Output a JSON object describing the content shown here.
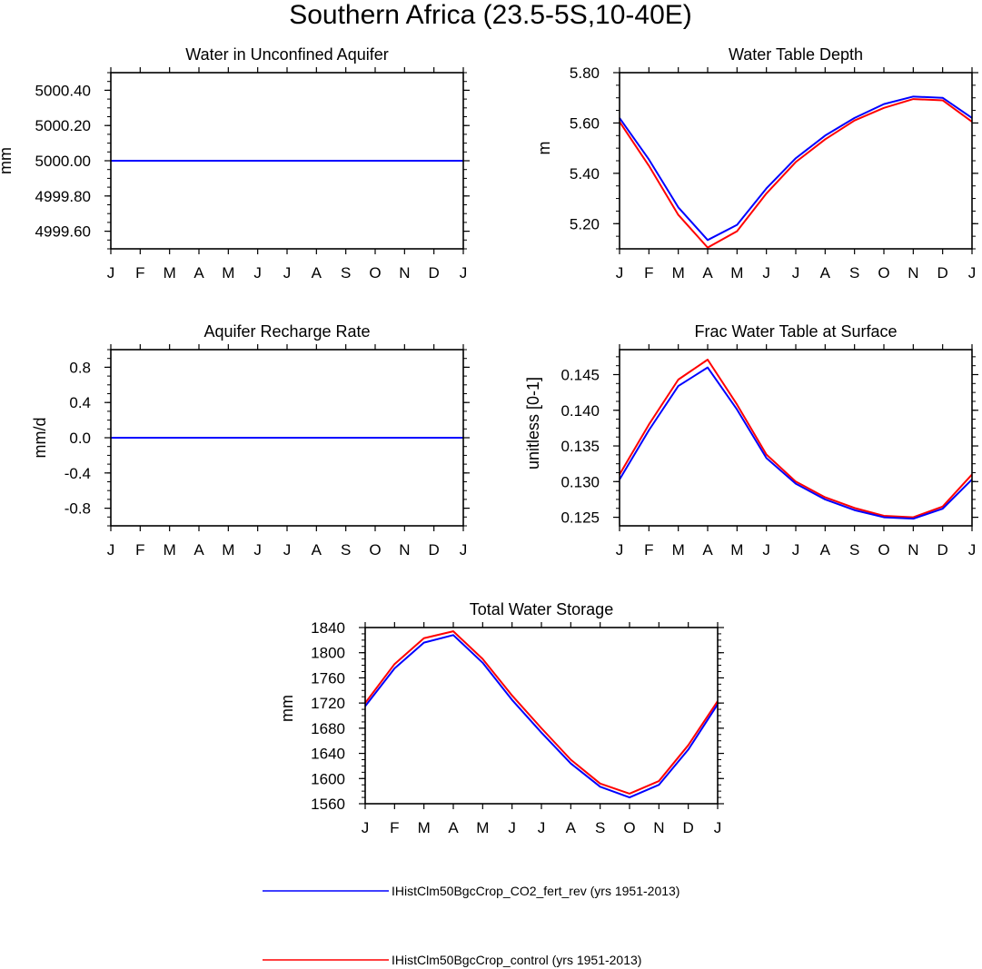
{
  "page_title": "Southern Africa (23.5-5S,10-40E)",
  "colors": {
    "blue": "#0000ff",
    "red": "#ff0000",
    "axis": "#000000"
  },
  "legend": {
    "items": [
      {
        "label": "IHistClm50BgcCrop_CO2_fert_rev (yrs 1951-2013)",
        "color": "#0000ff"
      },
      {
        "label": "IHistClm50BgcCrop_control (yrs 1951-2013)",
        "color": "#ff0000"
      }
    ]
  },
  "chart_data": [
    {
      "type": "line",
      "title": "Water in Unconfined Aquifer",
      "xlabel": "",
      "ylabel": "mm",
      "categories": [
        "J",
        "F",
        "M",
        "A",
        "M",
        "J",
        "J",
        "A",
        "S",
        "O",
        "N",
        "D",
        "J"
      ],
      "ylim": [
        4999.5,
        5000.5
      ],
      "yticks": [
        "5000.40",
        "5000.20",
        "5000.00",
        "4999.80",
        "4999.60"
      ],
      "grid": false,
      "series": [
        {
          "name": "IHistClm50BgcCrop_control (yrs 1951-2013)",
          "color": "#ff0000",
          "values": [
            5000,
            5000,
            5000,
            5000,
            5000,
            5000,
            5000,
            5000,
            5000,
            5000,
            5000,
            5000,
            5000
          ]
        },
        {
          "name": "IHistClm50BgcCrop_CO2_fert_rev (yrs 1951-2013)",
          "color": "#0000ff",
          "values": [
            5000,
            5000,
            5000,
            5000,
            5000,
            5000,
            5000,
            5000,
            5000,
            5000,
            5000,
            5000,
            5000
          ]
        }
      ]
    },
    {
      "type": "line",
      "title": "Water Table Depth",
      "xlabel": "",
      "ylabel": "m",
      "categories": [
        "J",
        "F",
        "M",
        "A",
        "M",
        "J",
        "J",
        "A",
        "S",
        "O",
        "N",
        "D",
        "J"
      ],
      "ylim": [
        5.1,
        5.8
      ],
      "yticks": [
        "5.80",
        "5.60",
        "5.40",
        "5.20"
      ],
      "grid": false,
      "series": [
        {
          "name": "IHistClm50BgcCrop_control (yrs 1951-2013)",
          "color": "#ff0000",
          "values": [
            5.605,
            5.43,
            5.235,
            5.105,
            5.17,
            5.32,
            5.445,
            5.535,
            5.61,
            5.66,
            5.695,
            5.69,
            5.605
          ]
        },
        {
          "name": "IHistClm50BgcCrop_CO2_fert_rev (yrs 1951-2013)",
          "color": "#0000ff",
          "values": [
            5.62,
            5.455,
            5.265,
            5.135,
            5.195,
            5.34,
            5.46,
            5.55,
            5.62,
            5.675,
            5.705,
            5.7,
            5.62
          ]
        }
      ]
    },
    {
      "type": "line",
      "title": "Aquifer Recharge Rate",
      "xlabel": "",
      "ylabel": "mm/d",
      "categories": [
        "J",
        "F",
        "M",
        "A",
        "M",
        "J",
        "J",
        "A",
        "S",
        "O",
        "N",
        "D",
        "J"
      ],
      "ylim": [
        -1.0,
        1.0
      ],
      "yticks": [
        "0.8",
        "0.4",
        "0.0",
        "-0.4",
        "-0.8"
      ],
      "grid": false,
      "series": [
        {
          "name": "IHistClm50BgcCrop_control (yrs 1951-2013)",
          "color": "#ff0000",
          "values": [
            0,
            0,
            0,
            0,
            0,
            0,
            0,
            0,
            0,
            0,
            0,
            0,
            0
          ]
        },
        {
          "name": "IHistClm50BgcCrop_CO2_fert_rev (yrs 1951-2013)",
          "color": "#0000ff",
          "values": [
            0,
            0,
            0,
            0,
            0,
            0,
            0,
            0,
            0,
            0,
            0,
            0,
            0
          ]
        }
      ]
    },
    {
      "type": "line",
      "title": "Frac Water Table at Surface",
      "xlabel": "",
      "ylabel": "unitless [0-1]",
      "categories": [
        "J",
        "F",
        "M",
        "A",
        "M",
        "J",
        "J",
        "A",
        "S",
        "O",
        "N",
        "D",
        "J"
      ],
      "ylim": [
        0.1238,
        0.1485
      ],
      "yticks": [
        "0.145",
        "0.140",
        "0.135",
        "0.130",
        "0.125"
      ],
      "grid": false,
      "series": [
        {
          "name": "IHistClm50BgcCrop_control (yrs 1951-2013)",
          "color": "#ff0000",
          "values": [
            0.131,
            0.138,
            0.1443,
            0.1471,
            0.1408,
            0.1338,
            0.13,
            0.1278,
            0.1263,
            0.1252,
            0.125,
            0.1265,
            0.131
          ]
        },
        {
          "name": "IHistClm50BgcCrop_CO2_fert_rev (yrs 1951-2013)",
          "color": "#0000ff",
          "values": [
            0.1303,
            0.1372,
            0.1434,
            0.146,
            0.1401,
            0.1333,
            0.1297,
            0.1275,
            0.126,
            0.125,
            0.1248,
            0.1262,
            0.1303
          ]
        }
      ]
    },
    {
      "type": "line",
      "title": "Total Water Storage",
      "xlabel": "",
      "ylabel": "mm",
      "categories": [
        "J",
        "F",
        "M",
        "A",
        "M",
        "J",
        "J",
        "A",
        "S",
        "O",
        "N",
        "D",
        "J"
      ],
      "ylim": [
        1560,
        1840
      ],
      "yticks": [
        "1840",
        "1800",
        "1760",
        "1720",
        "1680",
        "1640",
        "1600",
        "1560"
      ],
      "grid": false,
      "series": [
        {
          "name": "IHistClm50BgcCrop_control (yrs 1951-2013)",
          "color": "#ff0000",
          "values": [
            1720,
            1782,
            1823,
            1834,
            1790,
            1732,
            1680,
            1630,
            1592,
            1576,
            1596,
            1653,
            1723
          ]
        },
        {
          "name": "IHistClm50BgcCrop_CO2_fert_rev (yrs 1951-2013)",
          "color": "#0000ff",
          "values": [
            1715,
            1775,
            1816,
            1828,
            1784,
            1725,
            1673,
            1624,
            1587,
            1570,
            1590,
            1646,
            1718
          ]
        }
      ]
    }
  ]
}
